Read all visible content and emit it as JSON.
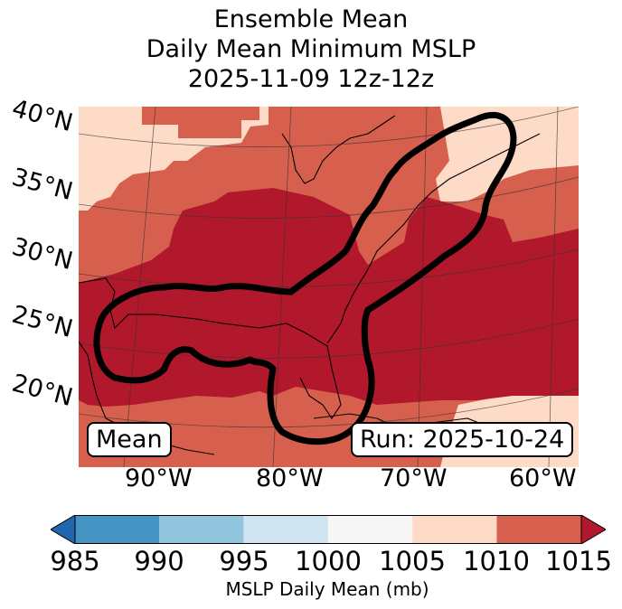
{
  "title": {
    "line1": "Ensemble Mean",
    "line2": "Daily Mean Minimum MSLP",
    "line3": "2025-11-09 12z-12z"
  },
  "map": {
    "lat_labels": [
      "40°N",
      "35°N",
      "30°N",
      "25°N",
      "20°N"
    ],
    "lon_labels": [
      "90°W",
      "80°W",
      "70°W",
      "60°W"
    ],
    "mean_label": "Mean",
    "run_label": "Run: 2025-10-24",
    "contour_color": "#000000"
  },
  "colorbar": {
    "ticks": [
      "985",
      "990",
      "995",
      "1000",
      "1005",
      "1010",
      "1015"
    ],
    "label": "MSLP Daily Mean (mb)",
    "colors": {
      "below": "#2166ac",
      "985-990": "#4393c3",
      "990-995": "#92c5de",
      "995-1000": "#d1e5f0",
      "1000-1005": "#f7f7f7",
      "1005-1010": "#fddbc7",
      "1010-1015": "#d6604d",
      "above": "#b2182b"
    }
  }
}
